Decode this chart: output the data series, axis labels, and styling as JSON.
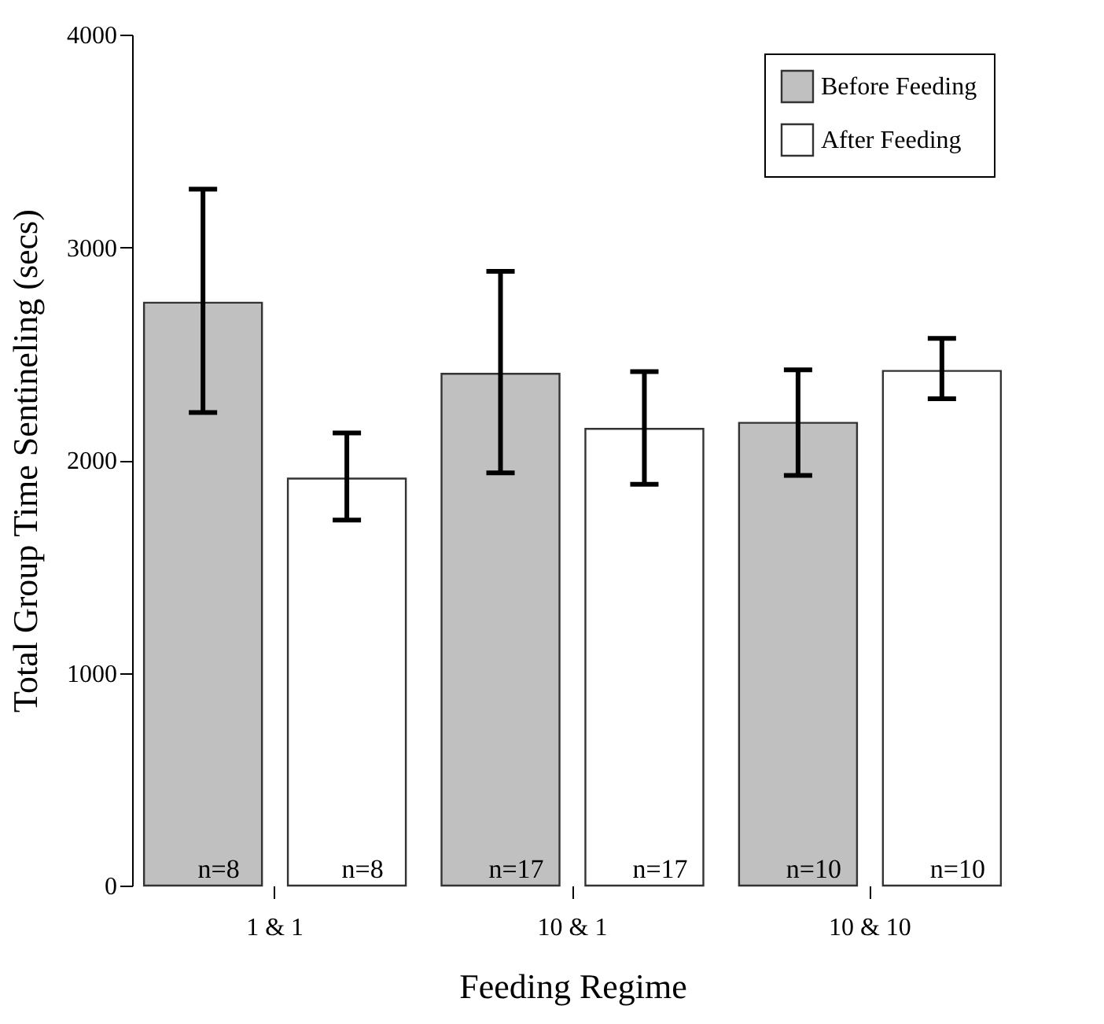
{
  "chart_data": {
    "type": "bar",
    "xlabel": "Feeding Regime",
    "ylabel": "Total Group Time Sentineling (secs)",
    "categories": [
      "1 & 1",
      "10 & 1",
      "10 & 10"
    ],
    "ylim": [
      0,
      4000
    ],
    "yticks": [
      0,
      1000,
      2000,
      3000,
      4000
    ],
    "grid": false,
    "legend": "top right",
    "annotations": [
      "n=8",
      "n=8",
      "n=17",
      "n=17",
      "n=10",
      "n=10"
    ],
    "series": [
      {
        "name": "Before Feeding",
        "color": "#c0c0c0",
        "values": [
          2740,
          2406,
          2175
        ],
        "errors": [
          [
            2224,
            3274
          ],
          [
            1940,
            2887
          ],
          [
            1928,
            2424
          ]
        ]
      },
      {
        "name": "After Feeding",
        "color": "#ffffff",
        "values": [
          1913,
          2147,
          2419
        ],
        "errors": [
          [
            1718,
            2128
          ],
          [
            1886,
            2416
          ],
          [
            2288,
            2572
          ]
        ]
      }
    ]
  }
}
